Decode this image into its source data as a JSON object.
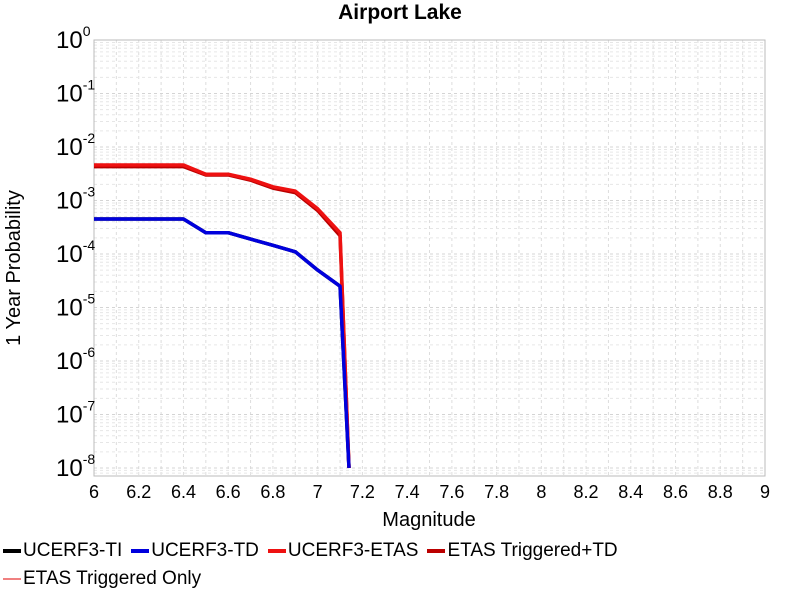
{
  "chart_data": {
    "type": "line",
    "title": "Airport Lake",
    "xlabel": "Magnitude",
    "ylabel": "1 Year Probability",
    "xlim": [
      6,
      9
    ],
    "ylim_log10": [
      -8.15,
      0
    ],
    "y_scale": "log",
    "grid": true,
    "x_ticks": [
      "6",
      "6.2",
      "6.4",
      "6.6",
      "6.8",
      "7",
      "7.2",
      "7.4",
      "7.6",
      "7.8",
      "8",
      "8.2",
      "8.4",
      "8.6",
      "8.8",
      "9"
    ],
    "y_ticks": [
      {
        "base": "10",
        "exp": "0"
      },
      {
        "base": "10",
        "exp": "-1"
      },
      {
        "base": "10",
        "exp": "-2"
      },
      {
        "base": "10",
        "exp": "-3"
      },
      {
        "base": "10",
        "exp": "-4"
      },
      {
        "base": "10",
        "exp": "-5"
      },
      {
        "base": "10",
        "exp": "-6"
      },
      {
        "base": "10",
        "exp": "-7"
      },
      {
        "base": "10",
        "exp": "-8"
      }
    ],
    "legend_placement": "bottom",
    "series": [
      {
        "name": "UCERF3-TI",
        "color": "#000000",
        "x": [
          6.0,
          6.4,
          6.5,
          6.6,
          6.7,
          6.8,
          6.9,
          7.0,
          7.1,
          7.14
        ],
        "y": [
          0.00045,
          0.00045,
          0.00025,
          0.00025,
          0.00019,
          0.000145,
          0.00011,
          5e-05,
          2.5e-05,
          1e-08
        ]
      },
      {
        "name": "UCERF3-TD",
        "color": "#0000dd",
        "x": [
          6.0,
          6.4,
          6.5,
          6.6,
          6.7,
          6.8,
          6.9,
          7.0,
          7.1,
          7.14
        ],
        "y": [
          0.00045,
          0.00045,
          0.00025,
          0.00025,
          0.00019,
          0.000145,
          0.00011,
          5e-05,
          2.5e-05,
          1e-08
        ]
      },
      {
        "name": "UCERF3-ETAS",
        "color": "#ee1111",
        "x": [
          6.0,
          6.4,
          6.5,
          6.6,
          6.7,
          6.8,
          6.9,
          7.0,
          7.1,
          7.14
        ],
        "y": [
          0.0046,
          0.0046,
          0.0031,
          0.0031,
          0.0025,
          0.0018,
          0.0015,
          0.0007,
          0.00025,
          1e-08
        ]
      },
      {
        "name": "ETAS Triggered+TD",
        "color": "#bb0000",
        "x": [
          6.0,
          6.4,
          6.5,
          6.6,
          6.7,
          6.8,
          6.9,
          7.0,
          7.1,
          7.14
        ],
        "y": [
          0.0043,
          0.0043,
          0.003,
          0.003,
          0.0024,
          0.0017,
          0.0014,
          0.00065,
          0.00022,
          1e-08
        ]
      },
      {
        "name": "ETAS Triggered Only",
        "color": "#f08080",
        "x": [],
        "y": []
      }
    ]
  }
}
